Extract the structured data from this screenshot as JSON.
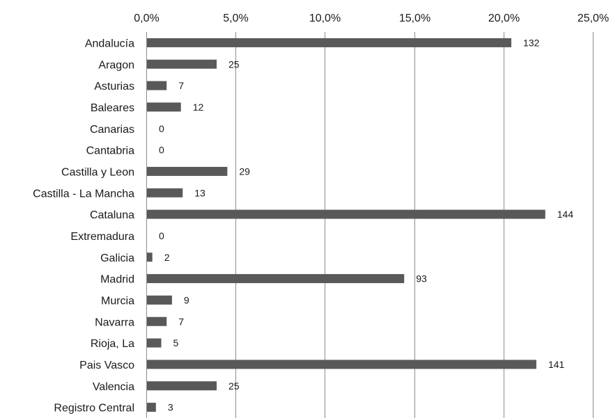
{
  "chart_data": {
    "type": "bar",
    "orientation": "horizontal",
    "x_axis_position": "top",
    "grid": true,
    "legend": "none",
    "xlim": [
      0,
      25
    ],
    "x_ticks": [
      "0,0%",
      "5,0%",
      "10,0%",
      "15,0%",
      "20,0%",
      "25,0%"
    ],
    "categories": [
      "Andalucía",
      "Aragon",
      "Asturias",
      "Baleares",
      "Canarias",
      "Cantabria",
      "Castilla y Leon",
      "Castilla - La Mancha",
      "Cataluna",
      "Extremadura",
      "Galicia",
      "Madrid",
      "Murcia",
      "Navarra",
      "Rioja, La",
      "Pais Vasco",
      "Valencia",
      "Registro Central"
    ],
    "series": [
      {
        "values": [
          20.4,
          3.9,
          1.1,
          1.9,
          0,
          0,
          4.5,
          2.0,
          22.3,
          0,
          0.3,
          14.4,
          1.4,
          1.1,
          0.8,
          21.8,
          3.9,
          0.5
        ],
        "labels": [
          "132",
          "25",
          "7",
          "12",
          "0",
          "0",
          "29",
          "13",
          "144",
          "0",
          "2",
          "93",
          "9",
          "7",
          "5",
          "141",
          "25",
          "3"
        ],
        "color": "#595959"
      }
    ]
  }
}
